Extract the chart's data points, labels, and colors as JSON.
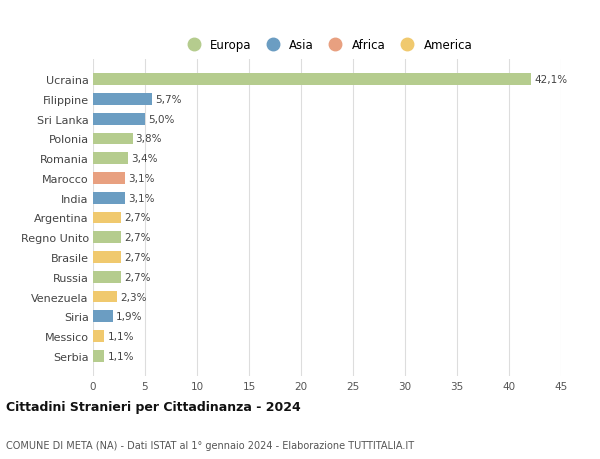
{
  "countries": [
    "Ucraina",
    "Filippine",
    "Sri Lanka",
    "Polonia",
    "Romania",
    "Marocco",
    "India",
    "Argentina",
    "Regno Unito",
    "Brasile",
    "Russia",
    "Venezuela",
    "Siria",
    "Messico",
    "Serbia"
  ],
  "values": [
    42.1,
    5.7,
    5.0,
    3.8,
    3.4,
    3.1,
    3.1,
    2.7,
    2.7,
    2.7,
    2.7,
    2.3,
    1.9,
    1.1,
    1.1
  ],
  "labels": [
    "42,1%",
    "5,7%",
    "5,0%",
    "3,8%",
    "3,4%",
    "3,1%",
    "3,1%",
    "2,7%",
    "2,7%",
    "2,7%",
    "2,7%",
    "2,3%",
    "1,9%",
    "1,1%",
    "1,1%"
  ],
  "continents": [
    "Europa",
    "Asia",
    "Asia",
    "Europa",
    "Europa",
    "Africa",
    "Asia",
    "America",
    "Europa",
    "America",
    "Europa",
    "America",
    "Asia",
    "America",
    "Europa"
  ],
  "colors": {
    "Europa": "#b5cc8e",
    "Asia": "#6b9dc2",
    "Africa": "#e8a080",
    "America": "#f0c96e"
  },
  "legend_order": [
    "Europa",
    "Asia",
    "Africa",
    "America"
  ],
  "xlim": [
    0,
    45
  ],
  "xticks": [
    0,
    5,
    10,
    15,
    20,
    25,
    30,
    35,
    40,
    45
  ],
  "title": "Cittadini Stranieri per Cittadinanza - 2024",
  "subtitle": "COMUNE DI META (NA) - Dati ISTAT al 1° gennaio 2024 - Elaborazione TUTTITALIA.IT",
  "bg_color": "#ffffff",
  "grid_color": "#dddddd"
}
